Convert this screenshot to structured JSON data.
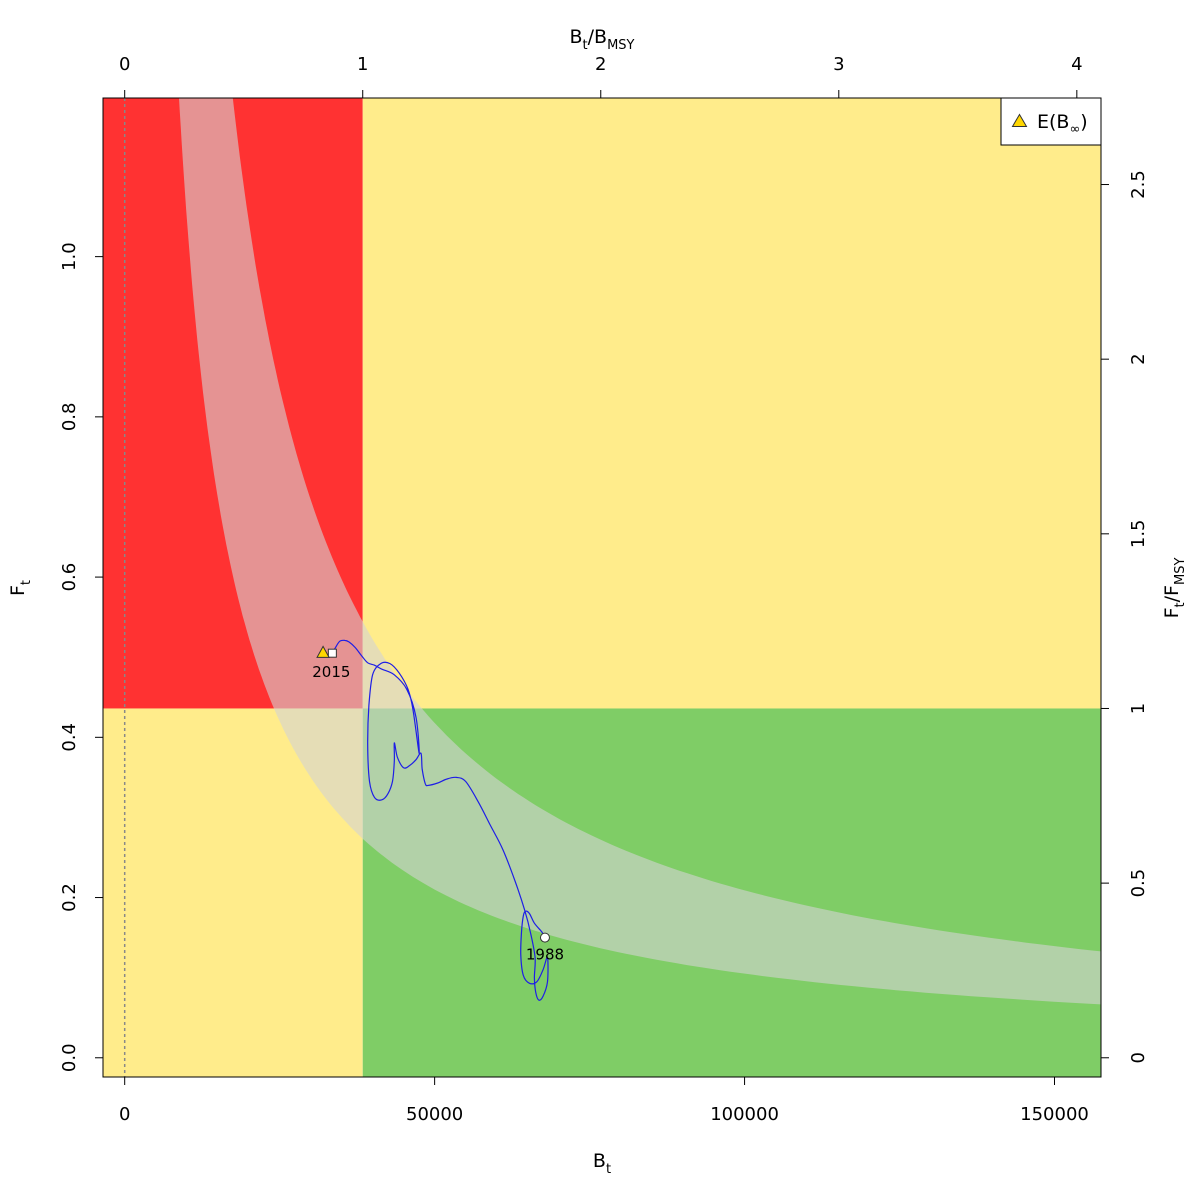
{
  "chart_data": {
    "type": "line",
    "xlabel": "B",
    "xlabel_sub": "t",
    "ylabel": "F",
    "ylabel_sub": "t",
    "top_xlabel": {
      "num": "B",
      "num_sub": "t",
      "sep": "/",
      "den": "B",
      "den_sub": "MSY"
    },
    "right_ylabel": {
      "num": "F",
      "num_sub": "t",
      "sep": "/",
      "den": "F",
      "den_sub": "MSY"
    },
    "xlim": [
      -3500,
      157500
    ],
    "ylim": [
      -0.024,
      1.198
    ],
    "x_ticks": [
      0,
      50000,
      100000,
      150000
    ],
    "y_ticks": [
      0.0,
      0.2,
      0.4,
      0.6,
      0.8,
      1.0
    ],
    "y_tick_labels": [
      "0.0",
      "0.2",
      "0.4",
      "0.6",
      "0.8",
      "1.0"
    ],
    "top_ticks": [
      0,
      1,
      2,
      3,
      4
    ],
    "right_ticks": [
      0,
      0.5,
      1,
      1.5,
      2,
      2.5
    ],
    "Bmsy": 38400,
    "Fmsy": 0.436,
    "colors": {
      "red": "#ff3232",
      "yellow": "#ffec8b",
      "green": "#7fcd66",
      "band": "#d3d3d3",
      "trajectory": "#1e1ee6",
      "marker": "#ffd700",
      "zero_line": "#888888"
    },
    "msy_band": {
      "lower_k": 10500,
      "upper_k": 20900
    },
    "trajectory": [
      {
        "x": 67800,
        "y": 0.15
      },
      {
        "x": 67300,
        "y": 0.157
      },
      {
        "x": 66100,
        "y": 0.168
      },
      {
        "x": 65300,
        "y": 0.18
      },
      {
        "x": 64700,
        "y": 0.183
      },
      {
        "x": 64300,
        "y": 0.177
      },
      {
        "x": 64000,
        "y": 0.155
      },
      {
        "x": 63900,
        "y": 0.128
      },
      {
        "x": 64300,
        "y": 0.103
      },
      {
        "x": 65300,
        "y": 0.093
      },
      {
        "x": 66500,
        "y": 0.095
      },
      {
        "x": 67500,
        "y": 0.11
      },
      {
        "x": 68200,
        "y": 0.125
      },
      {
        "x": 68200,
        "y": 0.095
      },
      {
        "x": 67500,
        "y": 0.077
      },
      {
        "x": 66800,
        "y": 0.072
      },
      {
        "x": 66300,
        "y": 0.082
      },
      {
        "x": 66100,
        "y": 0.1
      },
      {
        "x": 66200,
        "y": 0.125
      },
      {
        "x": 65500,
        "y": 0.155
      },
      {
        "x": 64500,
        "y": 0.185
      },
      {
        "x": 63000,
        "y": 0.22
      },
      {
        "x": 61000,
        "y": 0.26
      },
      {
        "x": 59000,
        "y": 0.29
      },
      {
        "x": 57000,
        "y": 0.32
      },
      {
        "x": 55000,
        "y": 0.345
      },
      {
        "x": 53500,
        "y": 0.35
      },
      {
        "x": 52000,
        "y": 0.348
      },
      {
        "x": 50500,
        "y": 0.343
      },
      {
        "x": 49000,
        "y": 0.34
      },
      {
        "x": 48500,
        "y": 0.342
      },
      {
        "x": 48000,
        "y": 0.36
      },
      {
        "x": 47800,
        "y": 0.38
      },
      {
        "x": 47000,
        "y": 0.372
      },
      {
        "x": 46000,
        "y": 0.365
      },
      {
        "x": 45000,
        "y": 0.362
      },
      {
        "x": 44000,
        "y": 0.375
      },
      {
        "x": 43500,
        "y": 0.393
      },
      {
        "x": 43500,
        "y": 0.37
      },
      {
        "x": 43200,
        "y": 0.345
      },
      {
        "x": 42500,
        "y": 0.33
      },
      {
        "x": 41500,
        "y": 0.322
      },
      {
        "x": 40300,
        "y": 0.325
      },
      {
        "x": 39500,
        "y": 0.345
      },
      {
        "x": 39200,
        "y": 0.39
      },
      {
        "x": 39400,
        "y": 0.44
      },
      {
        "x": 40000,
        "y": 0.478
      },
      {
        "x": 41300,
        "y": 0.492
      },
      {
        "x": 42800,
        "y": 0.492
      },
      {
        "x": 44300,
        "y": 0.48
      },
      {
        "x": 45700,
        "y": 0.46
      },
      {
        "x": 46500,
        "y": 0.435
      },
      {
        "x": 47500,
        "y": 0.38
      },
      {
        "x": 47000,
        "y": 0.425
      },
      {
        "x": 45500,
        "y": 0.46
      },
      {
        "x": 43500,
        "y": 0.478
      },
      {
        "x": 41500,
        "y": 0.485
      },
      {
        "x": 40300,
        "y": 0.49
      },
      {
        "x": 39200,
        "y": 0.493
      },
      {
        "x": 38200,
        "y": 0.502
      },
      {
        "x": 37200,
        "y": 0.512
      },
      {
        "x": 36200,
        "y": 0.519
      },
      {
        "x": 35500,
        "y": 0.521
      },
      {
        "x": 34700,
        "y": 0.52
      },
      {
        "x": 34000,
        "y": 0.512
      },
      {
        "x": 33500,
        "y": 0.505
      }
    ],
    "start": {
      "x": 67800,
      "y": 0.15,
      "label": "1988"
    },
    "end": {
      "x": 33500,
      "y": 0.505,
      "label": "2015"
    },
    "expected": {
      "x": 32000,
      "y": 0.506
    },
    "legend": {
      "label": "E(B",
      "sub": "∞",
      "close": ")",
      "position": "top-right"
    }
  }
}
